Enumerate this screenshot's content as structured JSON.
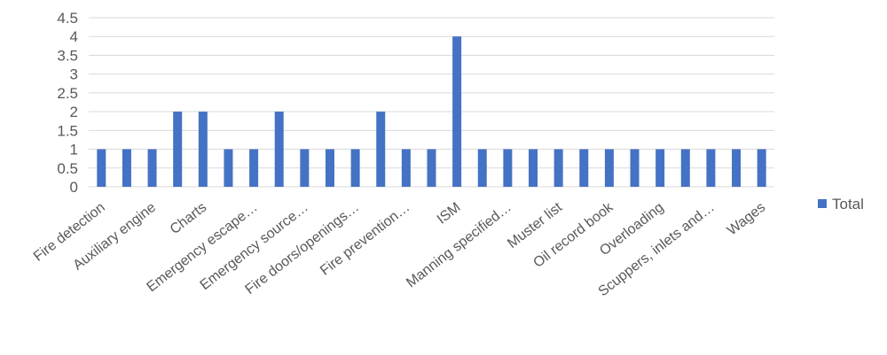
{
  "chart_data": {
    "type": "bar",
    "categories": [
      "Fire detection",
      "",
      "Auxiliary engine",
      "",
      "Charts",
      "",
      "Emergency escape…",
      "",
      "Emergency source…",
      "",
      "Fire doors/openings…",
      "",
      "Fire prevention…",
      "",
      "ISM",
      "",
      "Manning specified…",
      "",
      "Muster list",
      "",
      "Oil record book",
      "",
      "Overloading",
      "",
      "Scuppers, inlets and…",
      "",
      "Wages"
    ],
    "series": [
      {
        "name": "Total",
        "color": "#4472c4",
        "values": [
          1,
          1,
          1,
          2,
          2,
          1,
          1,
          2,
          1,
          1,
          1,
          2,
          1,
          1,
          4,
          1,
          1,
          1,
          1,
          1,
          1,
          1,
          1,
          1,
          1,
          1,
          1
        ]
      }
    ],
    "ylim": [
      0,
      4.5
    ],
    "yticks": [
      "0",
      "0.5",
      "1",
      "1.5",
      "2",
      "2.5",
      "3",
      "3.5",
      "4",
      "4.5"
    ],
    "grid": true,
    "legend": "right",
    "gridline_color": "#d9d9d9"
  }
}
